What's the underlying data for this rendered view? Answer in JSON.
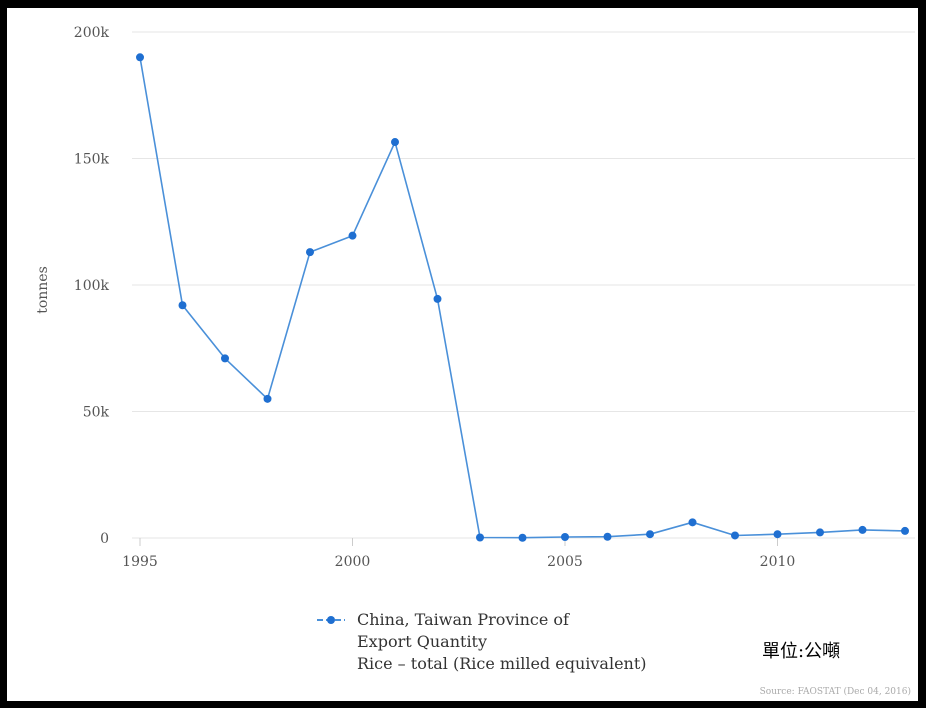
{
  "chart_data": {
    "type": "line",
    "title": "",
    "xlabel": "",
    "ylabel": "tonnes",
    "xlim": [
      1995,
      2013
    ],
    "ylim": [
      0,
      200000
    ],
    "x_ticks": [
      1995,
      2000,
      2005,
      2010
    ],
    "x_tick_labels": [
      "1995",
      "2000",
      "2005",
      "2010"
    ],
    "y_ticks": [
      0,
      50000,
      100000,
      150000,
      200000
    ],
    "y_tick_labels": [
      "0",
      "50k",
      "100k",
      "150k",
      "200k"
    ],
    "grid": "horizontal",
    "legend_position": "bottom",
    "series": [
      {
        "name": "China, Taiwan Province of",
        "legend_lines": [
          "China, Taiwan Province of",
          "Export Quantity",
          "Rice – total (Rice milled equivalent)"
        ],
        "color": "#4a90d9",
        "x": [
          1995,
          1996,
          1997,
          1998,
          1999,
          2000,
          2001,
          2002,
          2003,
          2004,
          2005,
          2006,
          2007,
          2008,
          2009,
          2010,
          2011,
          2012,
          2013
        ],
        "y": [
          190000,
          92000,
          71000,
          55000,
          113000,
          119500,
          156500,
          94500,
          200,
          100,
          400,
          500,
          1500,
          6200,
          1000,
          1500,
          2200,
          3200,
          2800
        ]
      }
    ],
    "annotations": {
      "unit": "單位:公噸",
      "source": "Source: FAOSTAT (Dec 04, 2016)"
    }
  }
}
